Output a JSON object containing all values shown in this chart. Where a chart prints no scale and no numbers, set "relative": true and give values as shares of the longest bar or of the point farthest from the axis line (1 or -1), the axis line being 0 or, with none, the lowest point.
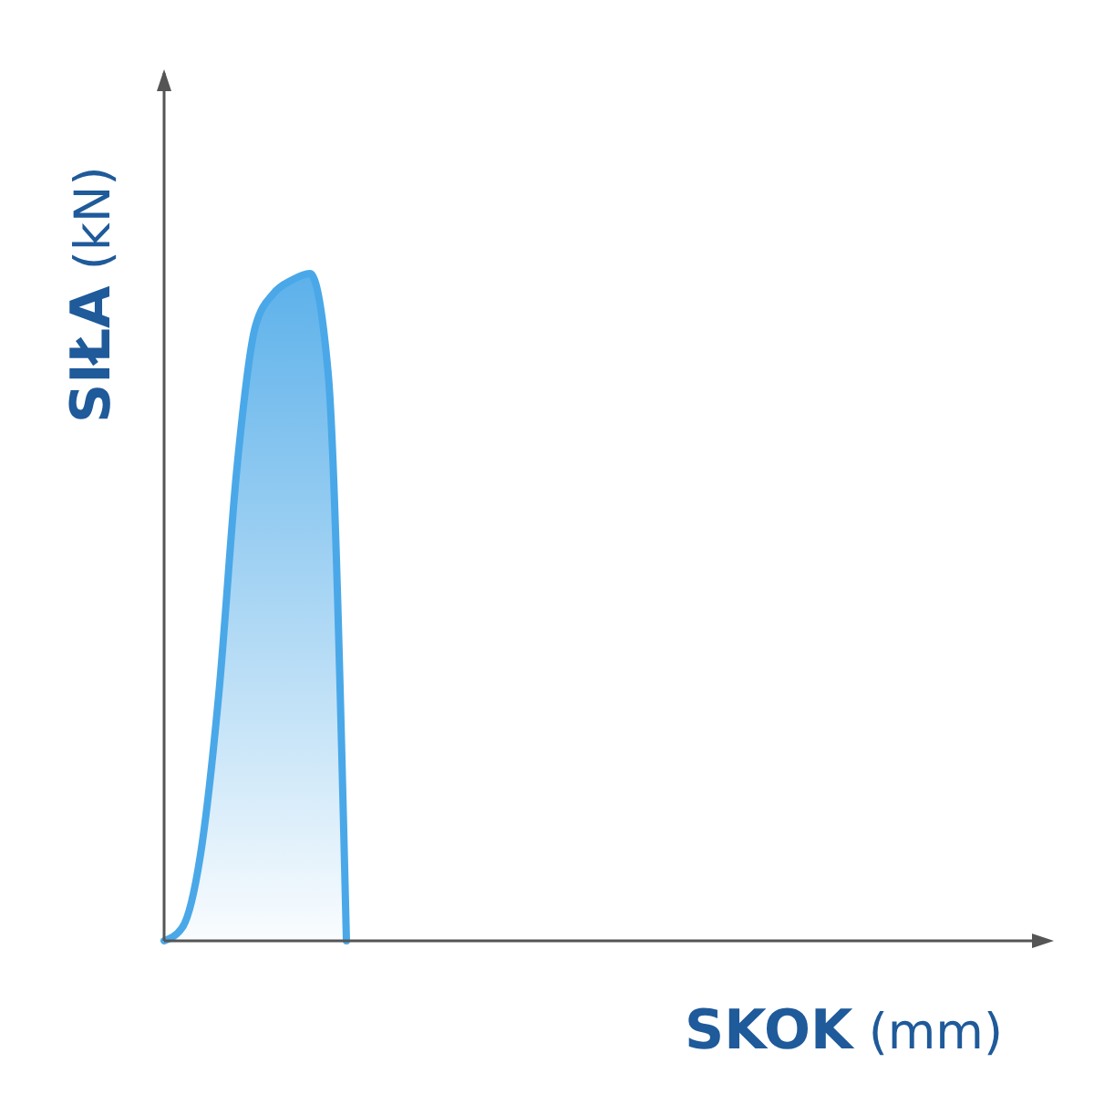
{
  "chart_data": {
    "type": "area",
    "relative": true,
    "xlabel": "SKOK (mm)",
    "ylabel": "SIŁA (kN)",
    "categories": [
      null,
      null,
      null,
      null,
      null,
      null,
      null,
      null,
      null,
      null,
      null,
      null,
      null,
      null,
      null,
      null,
      null,
      null,
      null,
      null,
      null,
      null,
      null,
      null,
      null,
      null,
      null,
      null,
      null,
      null,
      null,
      null,
      null,
      null,
      null,
      null,
      null,
      null,
      null,
      null,
      null,
      null,
      null,
      null,
      null,
      null,
      null,
      null
    ],
    "series": [
      {
        "color": "#4aa8e8",
        "values": [
          0,
          0.02,
          0.13,
          0.37,
          0.71,
          0.92,
          0.97,
          0.99,
          1,
          0.85,
          0,
          null,
          null,
          null,
          null,
          null,
          null,
          null,
          null,
          null,
          null,
          null,
          null,
          null,
          null,
          null,
          null,
          null,
          null,
          null,
          null,
          null,
          null,
          null,
          null,
          null,
          null,
          null,
          null,
          null,
          null,
          null,
          null,
          null,
          null,
          null,
          null,
          null
        ]
      }
    ],
    "grid": false
  }
}
